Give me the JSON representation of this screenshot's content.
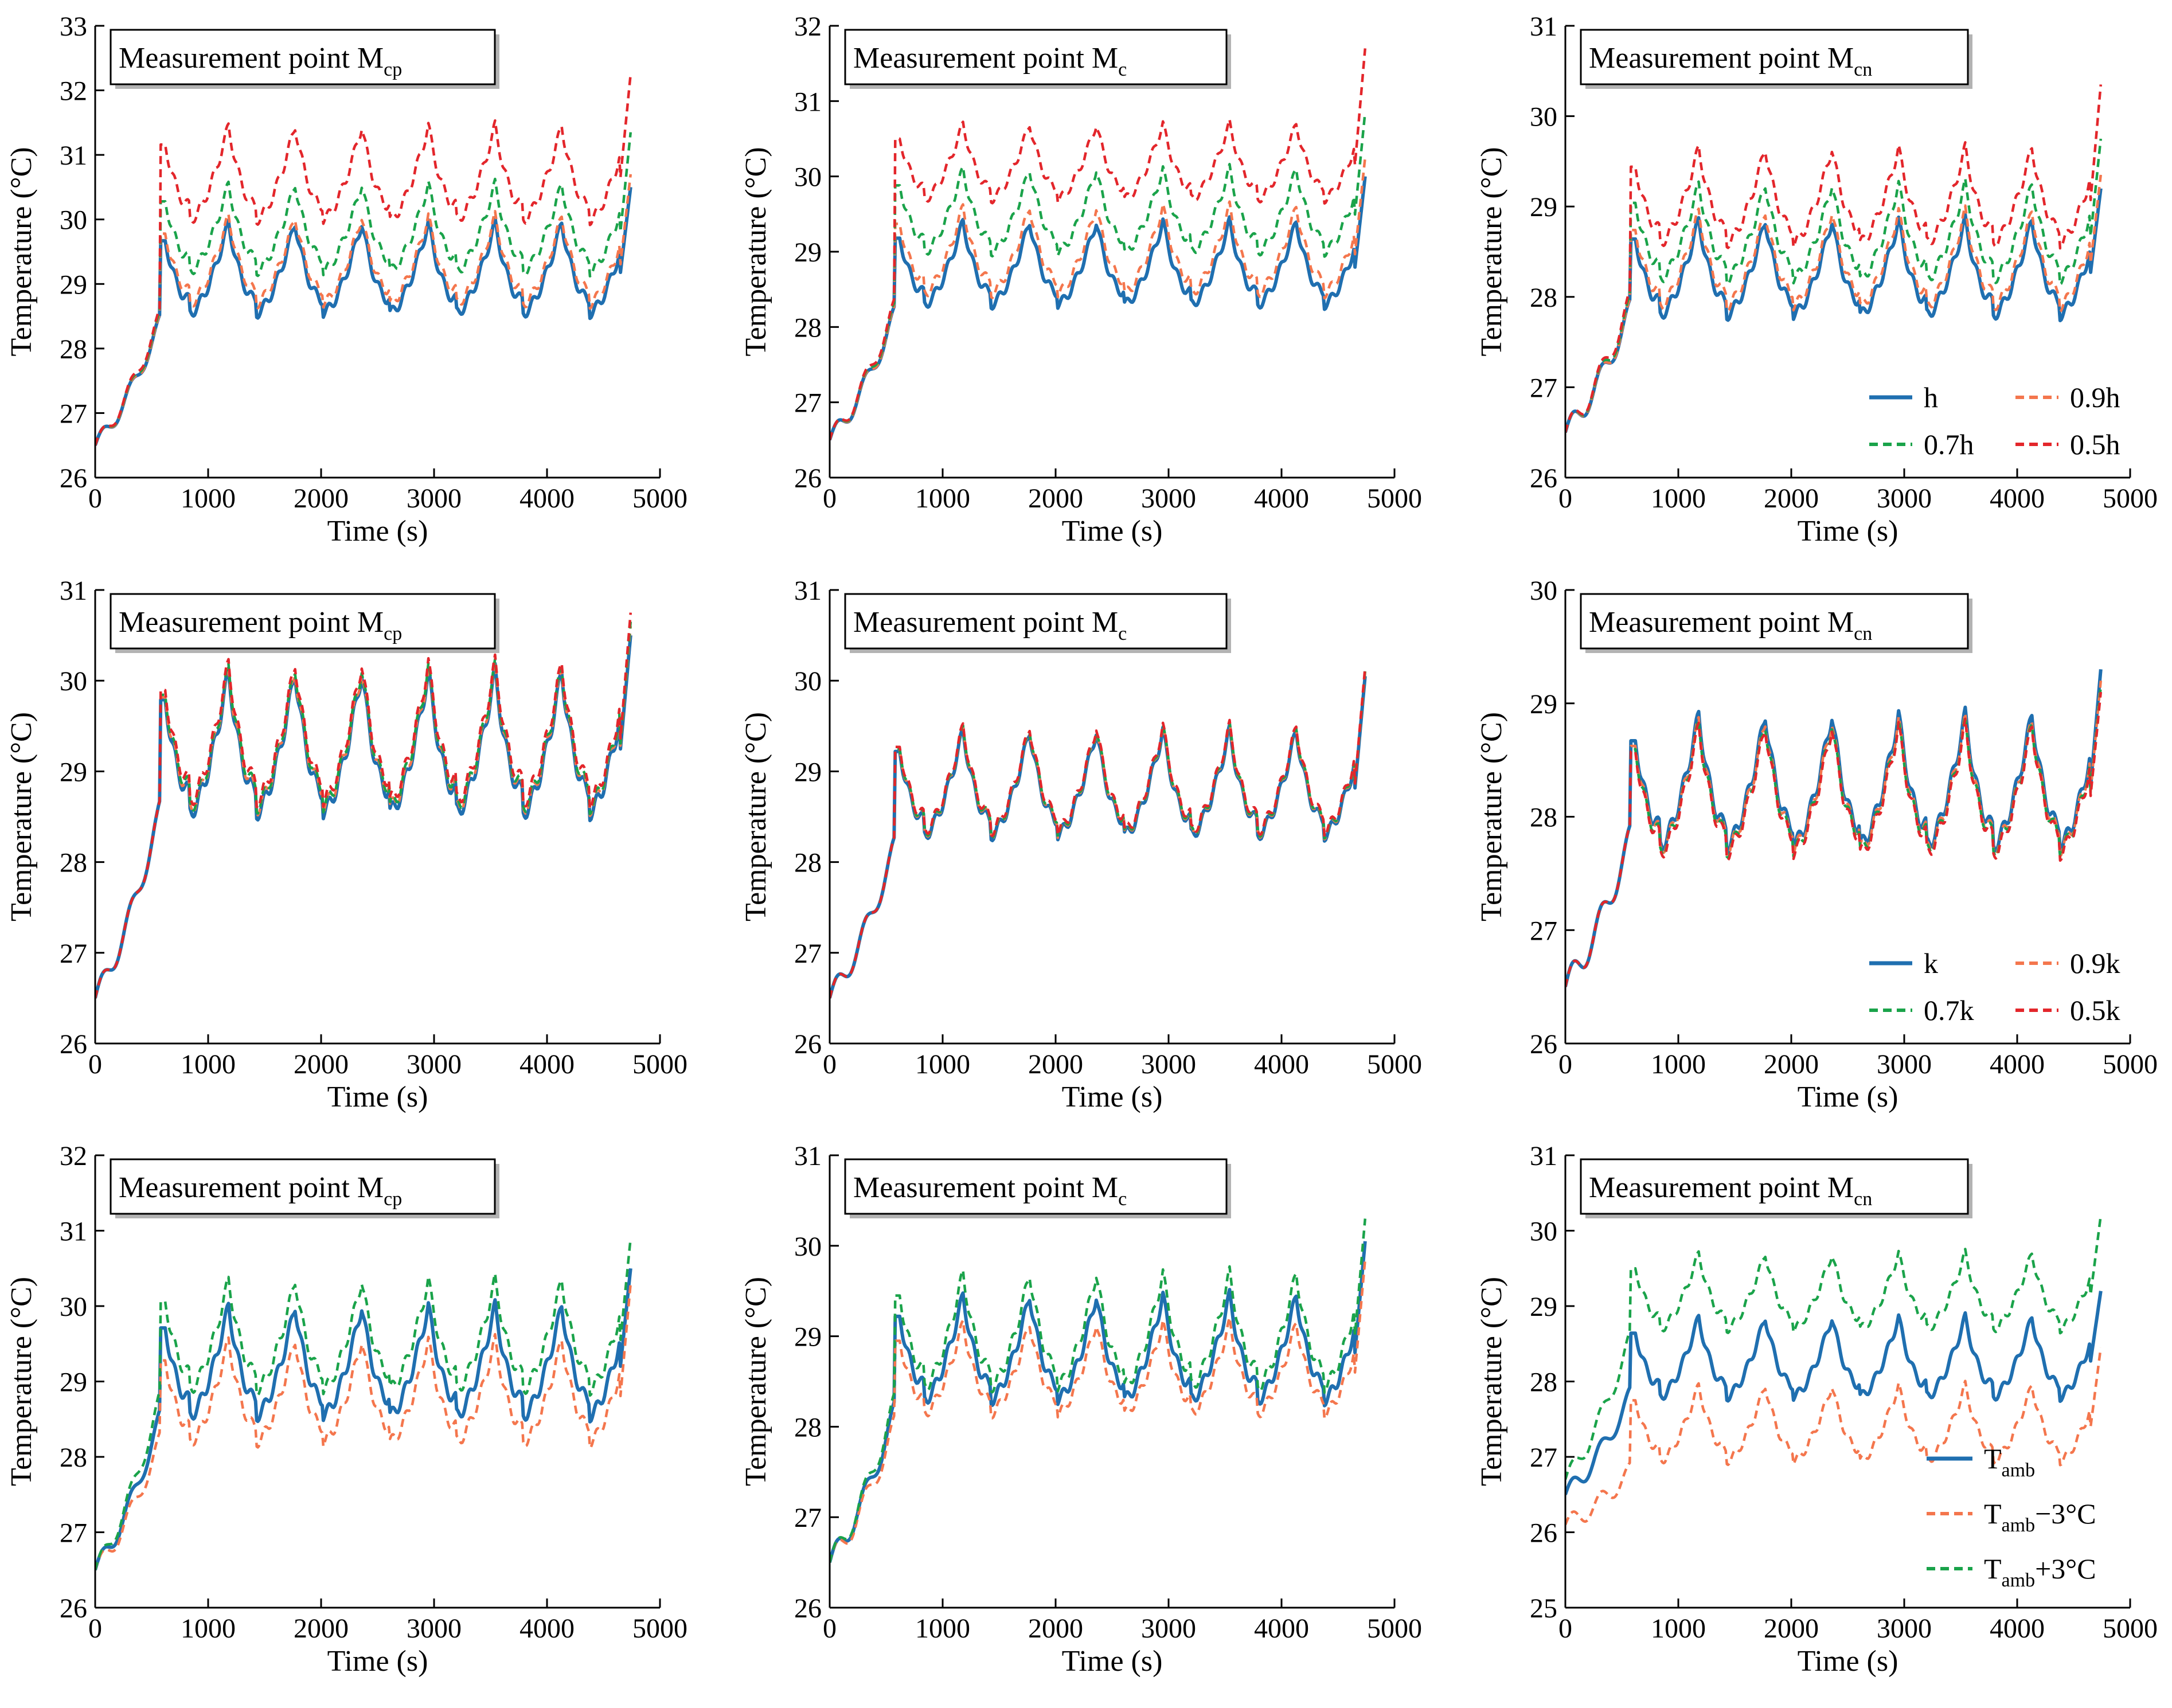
{
  "chart_data": [
    {
      "id": "r1c1",
      "type": "line",
      "title": "Measurement point M",
      "title_sub": "cp",
      "xlabel": "Time (s)",
      "ylabel": "Temperature (°C)",
      "xlim": [
        0,
        5000
      ],
      "ylim": [
        26,
        33
      ],
      "xticks": [
        "0",
        "1000",
        "2000",
        "3000",
        "4000",
        "5000"
      ],
      "yticks": [
        "26",
        "27",
        "28",
        "29",
        "30",
        "31",
        "32",
        "33"
      ],
      "series": [
        {
          "name": "h",
          "color": "#1f6fb0",
          "dash": "solid",
          "start": 26.5,
          "warm": 1.9,
          "base": 28.55,
          "peak": 29.95,
          "end": 30.5
        },
        {
          "name": "0.9h",
          "color": "#f4764d",
          "dash": "dashed",
          "start": 26.5,
          "warm": 1.9,
          "base": 28.7,
          "peak": 30.05,
          "end": 30.7
        },
        {
          "name": "0.7h",
          "color": "#1aa34a",
          "dash": "dashed",
          "start": 26.5,
          "warm": 1.95,
          "base": 29.2,
          "peak": 30.55,
          "end": 31.35
        },
        {
          "name": "0.5h",
          "color": "#e3262b",
          "dash": "dashed",
          "start": 26.5,
          "warm": 2.0,
          "base": 30.0,
          "peak": 31.45,
          "end": 32.25
        }
      ],
      "legend": null
    },
    {
      "id": "r1c2",
      "type": "line",
      "title": "Measurement point M",
      "title_sub": "c",
      "xlabel": "Time (s)",
      "ylabel": "Temperature (°C)",
      "xlim": [
        0,
        5000
      ],
      "ylim": [
        26,
        32
      ],
      "xticks": [
        "0",
        "1000",
        "2000",
        "3000",
        "4000",
        "5000"
      ],
      "yticks": [
        "26",
        "27",
        "28",
        "29",
        "30",
        "31",
        "32"
      ],
      "series": [
        {
          "name": "h",
          "color": "#1f6fb0",
          "dash": "solid",
          "start": 26.5,
          "warm": 1.65,
          "base": 28.3,
          "peak": 29.4,
          "end": 30.0
        },
        {
          "name": "0.9h",
          "color": "#f4764d",
          "dash": "dashed",
          "start": 26.5,
          "warm": 1.65,
          "base": 28.45,
          "peak": 29.6,
          "end": 30.25
        },
        {
          "name": "0.7h",
          "color": "#1aa34a",
          "dash": "dashed",
          "start": 26.5,
          "warm": 1.7,
          "base": 29.0,
          "peak": 30.1,
          "end": 30.85
        },
        {
          "name": "0.5h",
          "color": "#e3262b",
          "dash": "dashed",
          "start": 26.5,
          "warm": 1.75,
          "base": 29.7,
          "peak": 30.7,
          "end": 31.7
        }
      ],
      "legend": null
    },
    {
      "id": "r1c3",
      "type": "line",
      "title": "Measurement point M",
      "title_sub": "cn",
      "xlabel": "Time (s)",
      "ylabel": "Temperature (°C)",
      "xlim": [
        0,
        5000
      ],
      "ylim": [
        26,
        31
      ],
      "xticks": [
        "0",
        "1000",
        "2000",
        "3000",
        "4000",
        "5000"
      ],
      "yticks": [
        "26",
        "27",
        "28",
        "29",
        "30",
        "31"
      ],
      "series": [
        {
          "name": "h",
          "color": "#1f6fb0",
          "dash": "solid",
          "start": 26.5,
          "warm": 1.35,
          "base": 27.8,
          "peak": 28.85,
          "end": 29.2
        },
        {
          "name": "0.9h",
          "color": "#f4764d",
          "dash": "dashed",
          "start": 26.5,
          "warm": 1.35,
          "base": 27.9,
          "peak": 28.95,
          "end": 29.35
        },
        {
          "name": "0.7h",
          "color": "#1aa34a",
          "dash": "dashed",
          "start": 26.5,
          "warm": 1.4,
          "base": 28.2,
          "peak": 29.25,
          "end": 29.75
        },
        {
          "name": "0.5h",
          "color": "#e3262b",
          "dash": "dashed",
          "start": 26.5,
          "warm": 1.45,
          "base": 28.6,
          "peak": 29.65,
          "end": 30.35
        }
      ],
      "legend": {
        "layout": "two-column",
        "placement": "bottom-right"
      }
    },
    {
      "id": "r2c1",
      "type": "line",
      "title": "Measurement point M",
      "title_sub": "cp",
      "xlabel": "Time (s)",
      "ylabel": "Temperature (°C)",
      "xlim": [
        0,
        5000
      ],
      "ylim": [
        26,
        31
      ],
      "xticks": [
        "0",
        "1000",
        "2000",
        "3000",
        "4000",
        "5000"
      ],
      "yticks": [
        "26",
        "27",
        "28",
        "29",
        "30",
        "31"
      ],
      "series": [
        {
          "name": "k",
          "color": "#1f6fb0",
          "dash": "solid",
          "start": 26.5,
          "warm": 2.05,
          "base": 28.55,
          "peak": 30.1,
          "end": 30.5
        },
        {
          "name": "0.9k",
          "color": "#f4764d",
          "dash": "dashed",
          "start": 26.5,
          "warm": 2.05,
          "base": 28.6,
          "peak": 30.12,
          "end": 30.6
        },
        {
          "name": "0.7k",
          "color": "#1aa34a",
          "dash": "dashed",
          "start": 26.5,
          "warm": 2.05,
          "base": 28.62,
          "peak": 30.15,
          "end": 30.65
        },
        {
          "name": "0.5k",
          "color": "#e3262b",
          "dash": "dashed",
          "start": 26.5,
          "warm": 2.05,
          "base": 28.68,
          "peak": 30.2,
          "end": 30.75
        }
      ],
      "legend": null
    },
    {
      "id": "r2c2",
      "type": "line",
      "title": "Measurement point M",
      "title_sub": "c",
      "xlabel": "Time (s)",
      "ylabel": "Temperature (°C)",
      "xlim": [
        0,
        5000
      ],
      "ylim": [
        26,
        31
      ],
      "xticks": [
        "0",
        "1000",
        "2000",
        "3000",
        "4000",
        "5000"
      ],
      "yticks": [
        "26",
        "27",
        "28",
        "29",
        "30",
        "31"
      ],
      "series": [
        {
          "name": "k",
          "color": "#1f6fb0",
          "dash": "solid",
          "start": 26.5,
          "warm": 1.65,
          "base": 28.3,
          "peak": 29.45,
          "end": 30.05
        },
        {
          "name": "0.9k",
          "color": "#f4764d",
          "dash": "dashed",
          "start": 26.5,
          "warm": 1.65,
          "base": 28.32,
          "peak": 29.47,
          "end": 30.1
        },
        {
          "name": "0.7k",
          "color": "#1aa34a",
          "dash": "dashed",
          "start": 26.5,
          "warm": 1.65,
          "base": 28.33,
          "peak": 29.48,
          "end": 30.12
        },
        {
          "name": "0.5k",
          "color": "#e3262b",
          "dash": "dashed",
          "start": 26.5,
          "warm": 1.65,
          "base": 28.35,
          "peak": 29.5,
          "end": 30.15
        }
      ],
      "legend": null
    },
    {
      "id": "r2c3",
      "type": "line",
      "title": "Measurement point M",
      "title_sub": "cn",
      "xlabel": "Time (s)",
      "ylabel": "Temperature (°C)",
      "xlim": [
        0,
        5000
      ],
      "ylim": [
        26,
        30
      ],
      "xticks": [
        "0",
        "1000",
        "2000",
        "3000",
        "4000",
        "5000"
      ],
      "yticks": [
        "26",
        "27",
        "28",
        "29",
        "30"
      ],
      "series": [
        {
          "name": "k",
          "color": "#1f6fb0",
          "dash": "solid",
          "start": 26.5,
          "warm": 1.3,
          "base": 27.75,
          "peak": 28.9,
          "end": 29.3
        },
        {
          "name": "0.9k",
          "color": "#f4764d",
          "dash": "dashed",
          "start": 26.5,
          "warm": 1.3,
          "base": 27.72,
          "peak": 28.85,
          "end": 29.2
        },
        {
          "name": "0.7k",
          "color": "#1aa34a",
          "dash": "dashed",
          "start": 26.5,
          "warm": 1.3,
          "base": 27.7,
          "peak": 28.82,
          "end": 29.15
        },
        {
          "name": "0.5k",
          "color": "#e3262b",
          "dash": "dashed",
          "start": 26.5,
          "warm": 1.3,
          "base": 27.68,
          "peak": 28.8,
          "end": 29.1
        }
      ],
      "legend": {
        "layout": "two-column",
        "placement": "bottom-right"
      }
    },
    {
      "id": "r3c1",
      "type": "line",
      "title": "Measurement point M",
      "title_sub": "cp",
      "xlabel": "Time (s)",
      "ylabel": "Temperature (°C)",
      "xlim": [
        0,
        5000
      ],
      "ylim": [
        26,
        32
      ],
      "xticks": [
        "0",
        "1000",
        "2000",
        "3000",
        "4000",
        "5000"
      ],
      "yticks": [
        "26",
        "27",
        "28",
        "29",
        "30",
        "31",
        "32"
      ],
      "series": [
        {
          "name": "Tamb",
          "label_main": "T",
          "label_sub": "amb",
          "label_suffix": "",
          "color": "#1f6fb0",
          "dash": "solid",
          "start": 26.5,
          "warm": 2.0,
          "base": 28.55,
          "peak": 30.0,
          "end": 30.5
        },
        {
          "name": "Tamb−3°C",
          "label_main": "T",
          "label_sub": "amb",
          "label_suffix": "−3°C",
          "color": "#f4764d",
          "dash": "dashed",
          "start": 26.5,
          "warm": 1.7,
          "base": 28.2,
          "peak": 29.55,
          "end": 30.3
        },
        {
          "name": "Tamb+3°C",
          "label_main": "T",
          "label_sub": "amb",
          "label_suffix": "+3°C",
          "color": "#1aa34a",
          "dash": "dashed",
          "start": 26.5,
          "warm": 2.25,
          "base": 28.9,
          "peak": 30.35,
          "end": 30.9
        }
      ],
      "legend": null
    },
    {
      "id": "r3c2",
      "type": "line",
      "title": "Measurement point M",
      "title_sub": "c",
      "xlabel": "Time (s)",
      "ylabel": "Temperature (°C)",
      "xlim": [
        0,
        5000
      ],
      "ylim": [
        26,
        31
      ],
      "xticks": [
        "0",
        "1000",
        "2000",
        "3000",
        "4000",
        "5000"
      ],
      "yticks": [
        "26",
        "27",
        "28",
        "29",
        "30",
        "31"
      ],
      "series": [
        {
          "name": "Tamb",
          "label_main": "T",
          "label_sub": "amb",
          "label_suffix": "",
          "color": "#1f6fb0",
          "dash": "solid",
          "start": 26.5,
          "warm": 1.65,
          "base": 28.3,
          "peak": 29.45,
          "end": 30.05
        },
        {
          "name": "Tamb−3°C",
          "label_main": "T",
          "label_sub": "amb",
          "label_suffix": "−3°C",
          "color": "#f4764d",
          "dash": "dashed",
          "start": 26.5,
          "warm": 1.5,
          "base": 28.15,
          "peak": 29.15,
          "end": 29.85
        },
        {
          "name": "Tamb+3°C",
          "label_main": "T",
          "label_sub": "amb",
          "label_suffix": "+3°C",
          "color": "#1aa34a",
          "dash": "dashed",
          "start": 26.5,
          "warm": 1.75,
          "base": 28.45,
          "peak": 29.7,
          "end": 30.3
        }
      ],
      "legend": null
    },
    {
      "id": "r3c3",
      "type": "line",
      "title": "Measurement point M",
      "title_sub": "cn",
      "xlabel": "Time (s)",
      "ylabel": "Temperature (°C)",
      "xlim": [
        0,
        5000
      ],
      "ylim": [
        25,
        31
      ],
      "xticks": [
        "0",
        "1000",
        "2000",
        "3000",
        "4000",
        "5000"
      ],
      "yticks": [
        "25",
        "26",
        "27",
        "28",
        "29",
        "30",
        "31"
      ],
      "series": [
        {
          "name": "Tamb",
          "label_main": "T",
          "label_sub": "amb",
          "label_suffix": "",
          "color": "#1f6fb0",
          "dash": "solid",
          "start": 26.5,
          "warm": 1.3,
          "base": 27.8,
          "peak": 28.85,
          "end": 29.2
        },
        {
          "name": "Tamb−3°C",
          "label_main": "T",
          "label_sub": "amb",
          "label_suffix": "−3°C",
          "color": "#f4764d",
          "dash": "dashed",
          "start": 26.1,
          "warm": 0.7,
          "base": 26.95,
          "peak": 27.95,
          "end": 28.45
        },
        {
          "name": "Tamb+3°C",
          "label_main": "T",
          "label_sub": "amb",
          "label_suffix": "+3°C",
          "color": "#1aa34a",
          "dash": "dashed",
          "start": 26.7,
          "warm": 1.85,
          "base": 28.7,
          "peak": 29.7,
          "end": 30.2
        }
      ],
      "legend": {
        "layout": "one-column",
        "placement": "bottom-right"
      }
    }
  ]
}
